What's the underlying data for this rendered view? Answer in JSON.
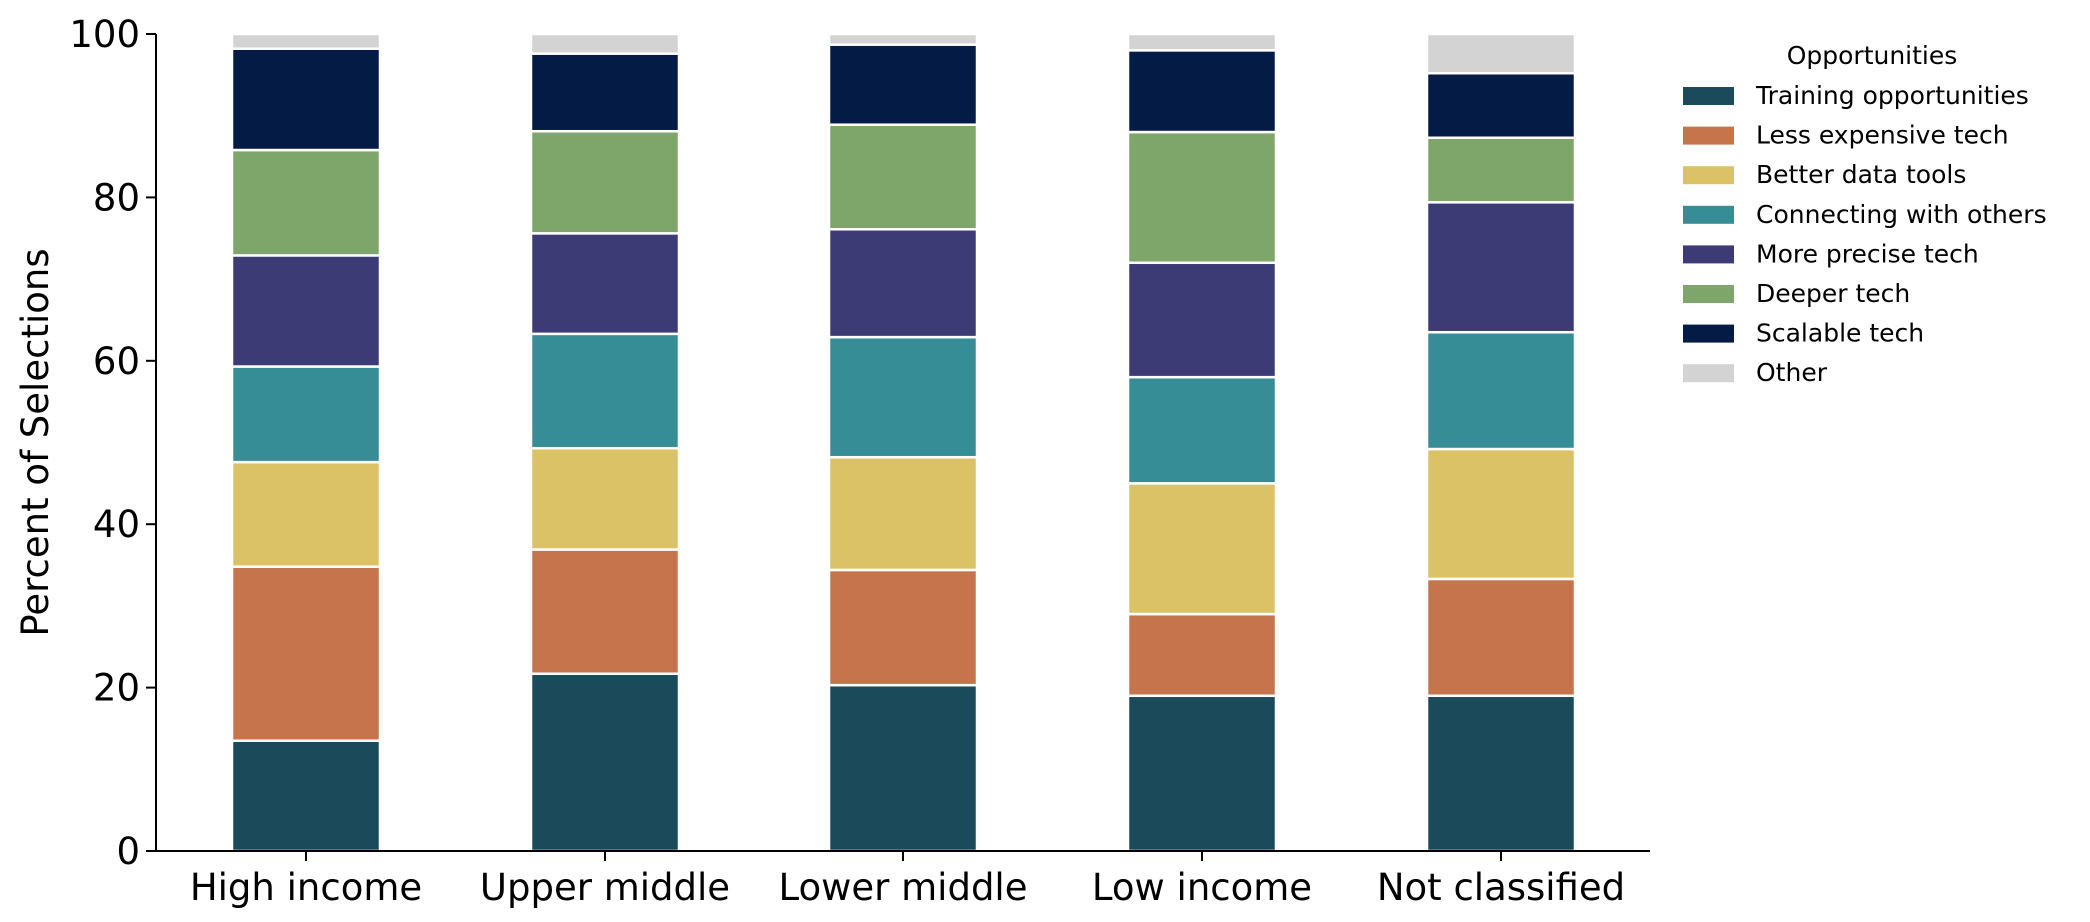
{
  "chart_data": {
    "type": "bar",
    "stacked": true,
    "title": "",
    "xlabel": "",
    "ylabel": "Percent of Selections",
    "ylim": [
      0,
      100
    ],
    "yticks": [
      0,
      20,
      40,
      60,
      80,
      100
    ],
    "grid": false,
    "legend_title": "Opportunities",
    "legend_position": "upper-right-outside",
    "categories": [
      "High income",
      "Upper middle",
      "Lower middle",
      "Low income",
      "Not classified"
    ],
    "series": [
      {
        "name": "Training opportunities",
        "color": "#1b4a5a",
        "values": [
          13.5,
          21.7,
          20.3,
          19.0,
          19.0
        ]
      },
      {
        "name": "Less expensive tech",
        "color": "#c5744c",
        "values": [
          21.3,
          15.2,
          14.1,
          10.0,
          14.3
        ]
      },
      {
        "name": "Better data tools",
        "color": "#dbc266",
        "values": [
          12.8,
          12.4,
          13.8,
          16.0,
          15.9
        ]
      },
      {
        "name": "Connecting with others",
        "color": "#368d96",
        "values": [
          11.7,
          14.0,
          14.7,
          13.0,
          14.3
        ]
      },
      {
        "name": "More precise tech",
        "color": "#3c3b75",
        "values": [
          13.6,
          12.3,
          13.2,
          14.0,
          15.9
        ]
      },
      {
        "name": "Deeper tech",
        "color": "#7ea66b",
        "values": [
          12.9,
          12.5,
          12.8,
          16.0,
          7.9
        ]
      },
      {
        "name": "Scalable tech",
        "color": "#031b45",
        "values": [
          12.4,
          9.5,
          9.8,
          10.0,
          7.9
        ]
      },
      {
        "name": "Other",
        "color": "#d3d3d3",
        "values": [
          1.8,
          2.4,
          1.3,
          2.0,
          4.8
        ]
      }
    ]
  }
}
